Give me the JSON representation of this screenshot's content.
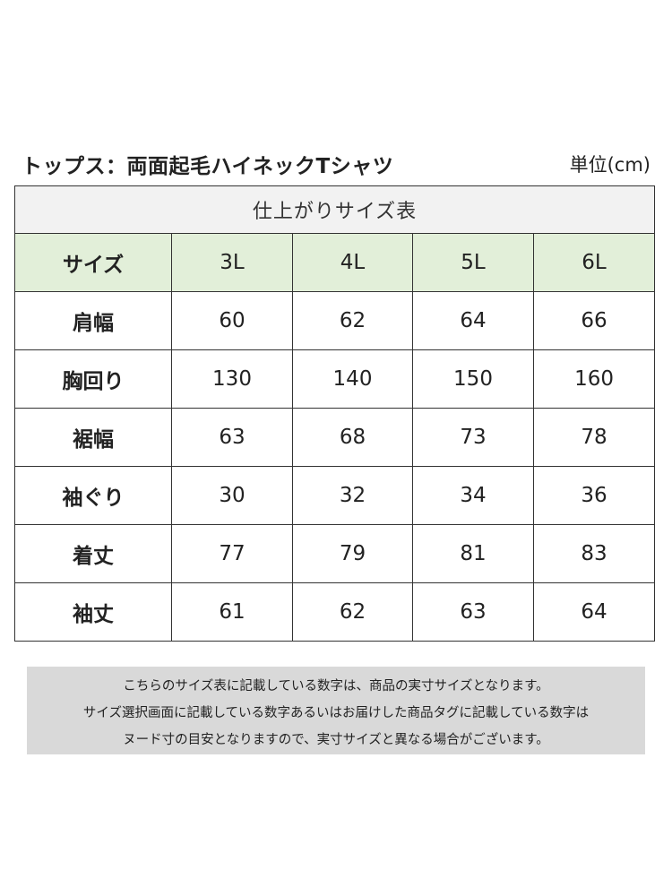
{
  "title": "トップス：両面起毛ハイネックTシャツ",
  "unit": "単位(cm)",
  "table": {
    "caption": "仕上がりサイズ表",
    "header": [
      "サイズ",
      "3L",
      "4L",
      "5L",
      "6L"
    ],
    "rows": [
      [
        "肩幅",
        "60",
        "62",
        "64",
        "66"
      ],
      [
        "胸回り",
        "130",
        "140",
        "150",
        "160"
      ],
      [
        "裾幅",
        "63",
        "68",
        "73",
        "78"
      ],
      [
        "袖ぐり",
        "30",
        "32",
        "34",
        "36"
      ],
      [
        "着丈",
        "77",
        "79",
        "81",
        "83"
      ],
      [
        "袖丈",
        "61",
        "62",
        "63",
        "64"
      ]
    ]
  },
  "notes": [
    "こちらのサイズ表に記載している数字は、商品の実寸サイズとなります。",
    "サイズ選択画面に記載している数字あるいはお届けした商品タグに記載している数字は",
    "ヌード寸の目安となりますので、実寸サイズと異なる場合がございます。"
  ],
  "colors": {
    "header_bg": "#e2efd9",
    "caption_bg": "#f2f2f2",
    "note_bg": "#d9d9d9",
    "border": "#333333"
  }
}
